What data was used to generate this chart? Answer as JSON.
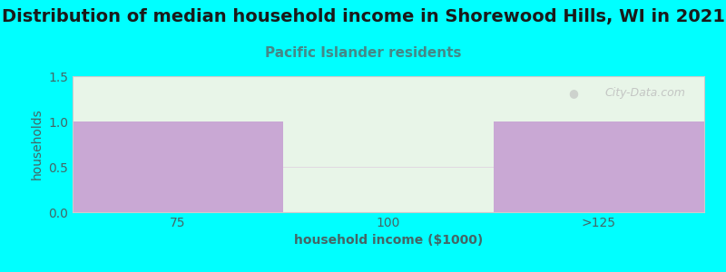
{
  "title": "Distribution of median household income in Shorewood Hills, WI in 2021",
  "subtitle": "Pacific Islander residents",
  "xlabel": "household income ($1000)",
  "ylabel": "households",
  "categories": [
    "75",
    "100",
    ">125"
  ],
  "values": [
    1,
    0,
    1
  ],
  "bar_color": "#c9a8d4",
  "background_color": "#00FFFF",
  "plot_bg_color": "#e8f5e8",
  "ylim": [
    0,
    1.5
  ],
  "yticks": [
    0,
    0.5,
    1,
    1.5
  ],
  "title_fontsize": 14,
  "subtitle_fontsize": 11,
  "subtitle_color": "#448888",
  "axis_label_color": "#446666",
  "tick_label_color": "#446666",
  "watermark": "City-Data.com"
}
